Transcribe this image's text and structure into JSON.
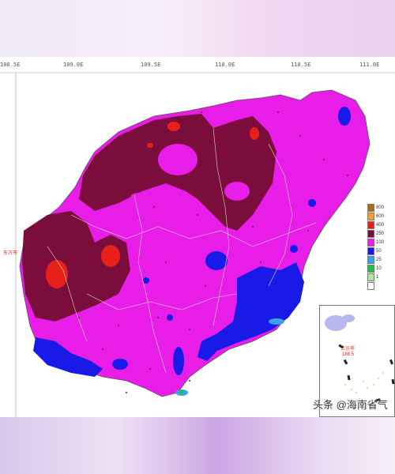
{
  "longitude_ticks": [
    "108.5E",
    "109.0E",
    "109.5E",
    "110.0E",
    "110.5E",
    "111.0E"
  ],
  "legend": {
    "entries": [
      {
        "label": "800",
        "color": "#a86e1a"
      },
      {
        "label": "600",
        "color": "#f0a23a"
      },
      {
        "label": "400",
        "color": "#e8201a"
      },
      {
        "label": "250",
        "color": "#7a0d3c"
      },
      {
        "label": "100",
        "color": "#e81ee8"
      },
      {
        "label": "50",
        "color": "#1a1ae8"
      },
      {
        "label": "25",
        "color": "#3aa0e8"
      },
      {
        "label": "10",
        "color": "#22c04a"
      },
      {
        "label": "1",
        "color": "#aee8a0"
      },
      {
        "label": "",
        "color": "#ffffff"
      }
    ]
  },
  "inset": {
    "label": "三沙市",
    "value": "188.5"
  },
  "map_labels": {
    "dongfang": "东方市"
  },
  "watermark": "头条 @海南省气"
}
